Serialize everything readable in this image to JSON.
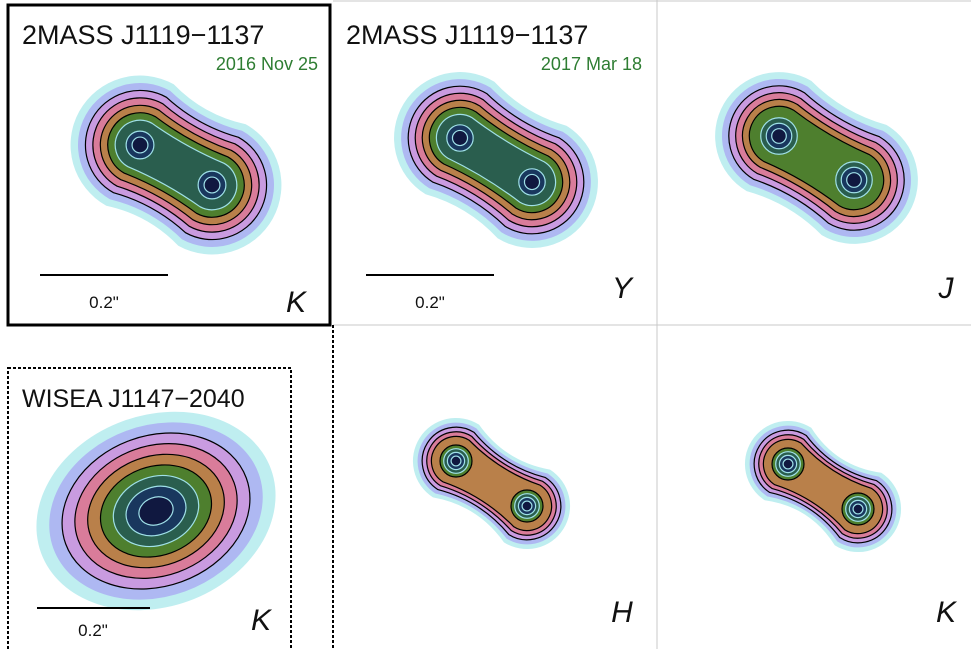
{
  "panels": [
    {
      "title": "2MASS J1119−1137",
      "date": "2016 Nov 25",
      "band": "K",
      "scale_label": "0.2\""
    },
    {
      "title": "2MASS J1119−1137",
      "date": "2017 Mar 18",
      "band": "Y",
      "scale_label": "0.2\""
    },
    {
      "band": "J"
    },
    {
      "title": "WISEA J1147−2040",
      "band": "K",
      "scale_label": "0.2\""
    },
    {
      "band": "H"
    },
    {
      "band": "K"
    }
  ],
  "colors": {
    "contour_levels": [
      "#bfeef0",
      "#aeb8f2",
      "#c99be0",
      "#d97c9a",
      "#b9804a",
      "#4e7f2e",
      "#2a5e4e",
      "#19375e",
      "#101840"
    ],
    "inner_contour_line": "#9fe0e8",
    "outer_contour_line": "#000000",
    "date_text": "#2e7d32",
    "frame": "#000000",
    "grid": "#c8c8c8"
  }
}
